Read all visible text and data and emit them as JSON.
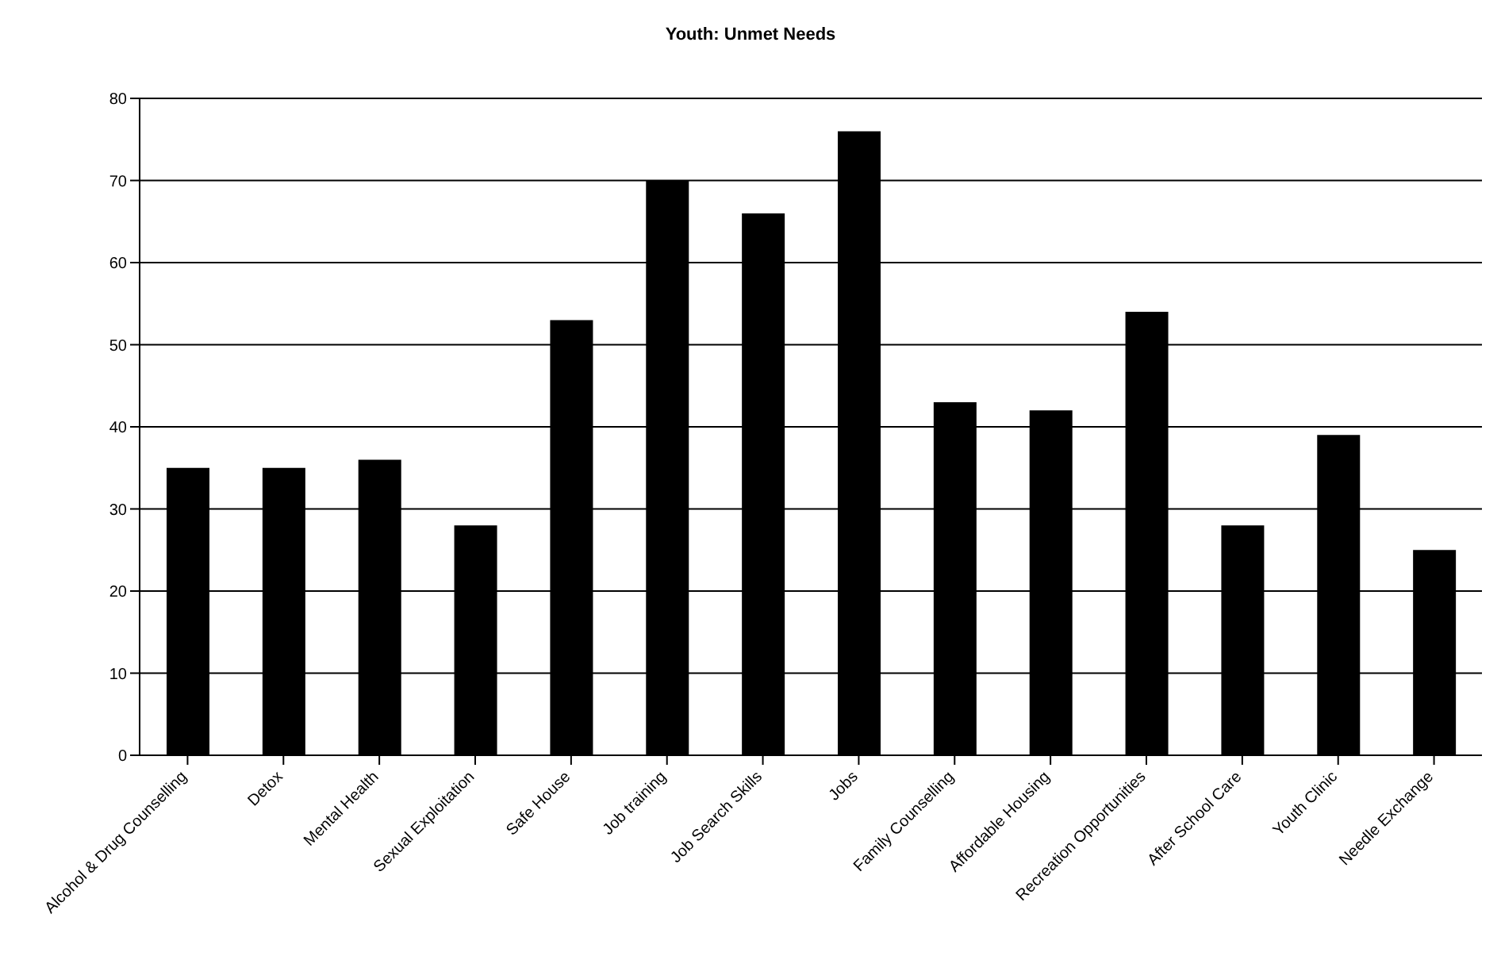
{
  "chart_data": {
    "type": "bar",
    "title": "Youth: Unmet Needs",
    "categories": [
      "Alcohol & Drug Counselling",
      "Detox",
      "Mental Health",
      "Sexual Exploitation",
      "Safe House",
      "Job training",
      "Job Search Skills",
      "Jobs",
      "Family Counselling",
      "Affordable Housing",
      "Recreation Opportunities",
      "After School Care",
      "Youth Clinic",
      "Needle Exchange"
    ],
    "values": [
      35,
      35,
      36,
      28,
      53,
      70,
      66,
      76,
      43,
      42,
      54,
      28,
      39,
      25
    ],
    "color": "#000000",
    "ylim": [
      0,
      80
    ],
    "yticks": [
      0,
      10,
      20,
      30,
      40,
      50,
      60,
      70,
      80
    ],
    "grid": "y",
    "legend": false
  }
}
